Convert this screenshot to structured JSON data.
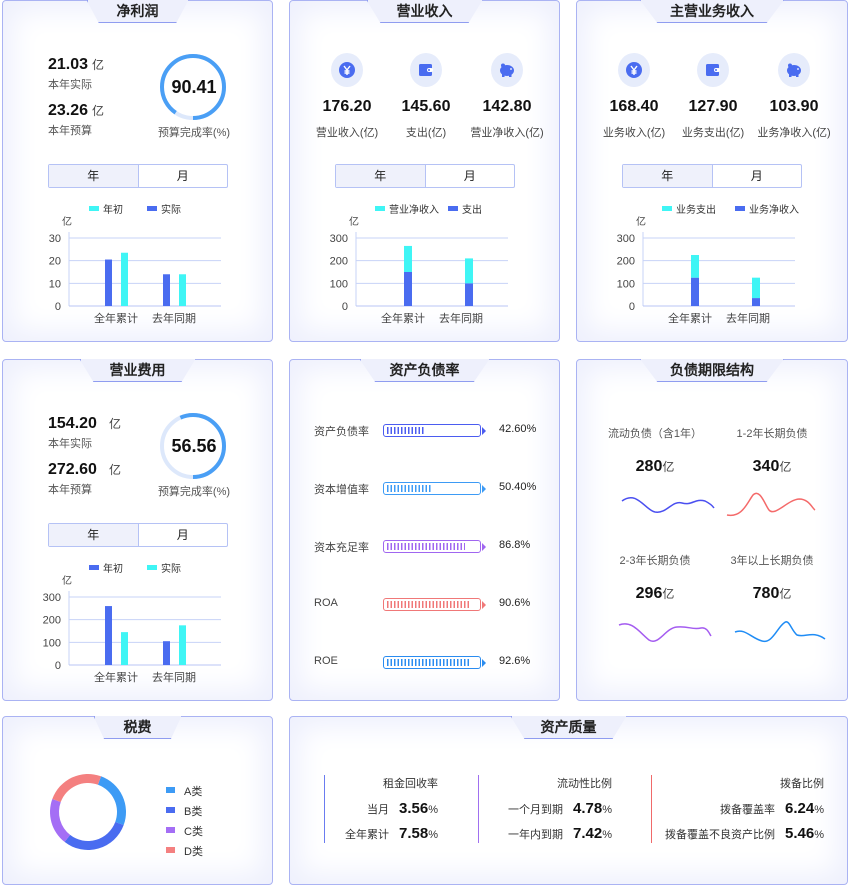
{
  "colors": {
    "blue": "#4a6cf0",
    "cyan": "#3ff5f5",
    "ring": "#4a9ff5",
    "track": "#dde8fb",
    "grid": "#c7d3f7"
  },
  "net_profit": {
    "title": "净利润",
    "actual_value": "21.03",
    "actual_unit": "亿",
    "actual_label": "本年实际",
    "budget_value": "23.26",
    "budget_unit": "亿",
    "budget_label": "本年预算",
    "gauge_value": "90.41",
    "gauge_percent": 90.41,
    "gauge_label": "预算完成率(%)",
    "tabs": [
      "年",
      "月"
    ],
    "chart_data": {
      "type": "bar",
      "unit": "亿",
      "categories": [
        "全年累计",
        "去年同期"
      ],
      "ylim": [
        0,
        30
      ],
      "yticks": [
        "0",
        "10",
        "20",
        "30"
      ],
      "stacked": false,
      "legend": [
        "年初",
        "实际"
      ],
      "series": [
        {
          "name": "实际",
          "color": "#4a6cf0",
          "values": [
            20.5,
            14
          ]
        },
        {
          "name": "年初",
          "color": "#3ff5f5",
          "values": [
            23.5,
            14
          ]
        }
      ]
    }
  },
  "revenue": {
    "title": "营业收入",
    "icons": [
      "yen-icon",
      "wallet-icon",
      "piggy-bank-icon"
    ],
    "items": [
      {
        "value": "176.20",
        "label": "营业收入(亿)"
      },
      {
        "value": "145.60",
        "label": "支出(亿)"
      },
      {
        "value": "142.80",
        "label": "营业净收入(亿)"
      }
    ],
    "tabs": [
      "年",
      "月"
    ],
    "chart_data": {
      "type": "bar",
      "unit": "亿",
      "categories": [
        "全年累计",
        "去年同期"
      ],
      "ylim": [
        0,
        300
      ],
      "yticks": [
        "0",
        "100",
        "200",
        "300"
      ],
      "stacked": true,
      "legend": [
        "营业净收入",
        "支出"
      ],
      "series": [
        {
          "name": "支出",
          "color": "#4a6cf0",
          "values": [
            150,
            100
          ]
        },
        {
          "name": "营业净收入",
          "color": "#3ff5f5",
          "values": [
            115,
            110
          ]
        }
      ]
    }
  },
  "main_revenue": {
    "title": "主营业务收入",
    "items": [
      {
        "value": "168.40",
        "label": "业务收入(亿)"
      },
      {
        "value": "127.90",
        "label": "业务支出(亿)"
      },
      {
        "value": "103.90",
        "label": "业务净收入(亿)"
      }
    ],
    "tabs": [
      "年",
      "月"
    ],
    "chart_data": {
      "type": "bar",
      "unit": "亿",
      "categories": [
        "全年累计",
        "去年同期"
      ],
      "ylim": [
        0,
        300
      ],
      "yticks": [
        "0",
        "100",
        "200",
        "300"
      ],
      "stacked": true,
      "legend": [
        "业务支出",
        "业务净收入"
      ],
      "series": [
        {
          "name": "业务净收入",
          "color": "#4a6cf0",
          "values": [
            125,
            35
          ]
        },
        {
          "name": "业务支出",
          "color": "#3ff5f5",
          "values": [
            100,
            90
          ]
        }
      ]
    }
  },
  "op_expense": {
    "title": "营业费用",
    "actual_value": "154.20",
    "actual_unit": "亿",
    "actual_label": "本年实际",
    "budget_value": "272.60",
    "budget_unit": "亿",
    "budget_label": "本年预算",
    "gauge_value": "56.56",
    "gauge_percent": 56.56,
    "gauge_label": "预算完成率(%)",
    "tabs": [
      "年",
      "月"
    ],
    "chart_data": {
      "type": "bar",
      "unit": "亿",
      "categories": [
        "全年累计",
        "去年同期"
      ],
      "ylim": [
        0,
        300
      ],
      "yticks": [
        "0",
        "100",
        "200",
        "300"
      ],
      "stacked": false,
      "legend": [
        "年初",
        "实际"
      ],
      "series": [
        {
          "name": "年初",
          "color": "#4a6cf0",
          "values": [
            260,
            105
          ]
        },
        {
          "name": "实际",
          "color": "#3ff5f5",
          "values": [
            145,
            175
          ]
        }
      ]
    }
  },
  "debt_ratio": {
    "title": "资产负债率",
    "rows": [
      {
        "label": "资产负债率",
        "value": "42.60%",
        "percent": 42.6,
        "color": "#4b5cf0"
      },
      {
        "label": "资本增值率",
        "value": "50.40%",
        "percent": 50.4,
        "color": "#3d9bf5"
      },
      {
        "label": "资本充足率",
        "value": "86.8%",
        "percent": 86.8,
        "color": "#a066f0"
      },
      {
        "label": "ROA",
        "value": "90.6%",
        "percent": 90.6,
        "color": "#f07878"
      },
      {
        "label": "ROE",
        "value": "92.6%",
        "percent": 92.6,
        "color": "#2a8cf0"
      }
    ]
  },
  "debt_term": {
    "title": "负债期限结构",
    "items": [
      {
        "label": "流动负债（含1年）",
        "value": "280",
        "unit": "亿",
        "color": "#4a4ff0"
      },
      {
        "label": "1-2年长期负债",
        "value": "340",
        "unit": "亿",
        "color": "#f46a6a"
      },
      {
        "label": "2-3年长期负债",
        "value": "296",
        "unit": "亿",
        "color": "#a45cf0"
      },
      {
        "label": "3年以上长期负债",
        "value": "780",
        "unit": "亿",
        "color": "#1f8cf5"
      }
    ]
  },
  "tax": {
    "title": "税费",
    "chart_data": {
      "type": "pie",
      "donut": true,
      "legend": [
        "A类",
        "B类",
        "C类",
        "D类"
      ],
      "values": [
        25,
        30,
        20,
        25
      ],
      "colors": [
        "#3d9bf5",
        "#4a6cf0",
        "#a46ef5",
        "#f48080"
      ]
    }
  },
  "asset_quality": {
    "title": "资产质量",
    "columns": [
      {
        "title": "租金回收率",
        "color": "#6a7cf0",
        "rows": [
          {
            "label": "当月",
            "value": "3.56",
            "unit": "%"
          },
          {
            "label": "全年累计",
            "value": "7.58",
            "unit": "%"
          }
        ]
      },
      {
        "title": "流动性比例",
        "color": "#a070f0",
        "rows": [
          {
            "label": "一个月到期",
            "value": "4.78",
            "unit": "%"
          },
          {
            "label": "一年内到期",
            "value": "7.42",
            "unit": "%"
          }
        ]
      },
      {
        "title": "拨备比例",
        "color": "#f06a6a",
        "rows": [
          {
            "label": "拨备覆盖率",
            "value": "6.24",
            "unit": "%"
          },
          {
            "label": "拨备覆盖不良资产比例",
            "value": "5.46",
            "unit": "%"
          }
        ]
      }
    ]
  }
}
